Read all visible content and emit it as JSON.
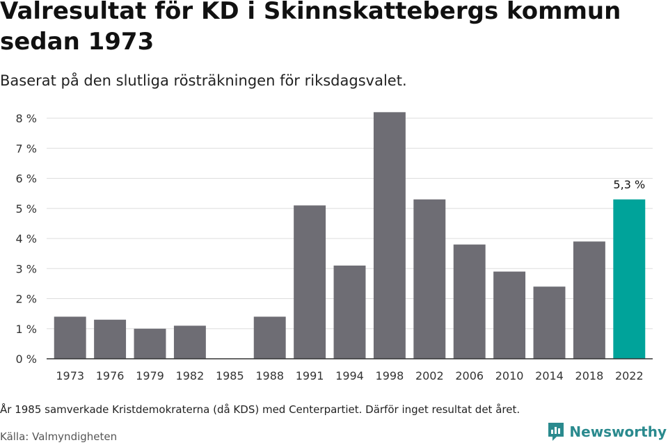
{
  "title": "Valresultat för KD i Skinnskattebergs kommun sedan 1973",
  "subtitle": "Baserat på den slutliga rösträkningen för riksdagsvalet.",
  "note": "År 1985 samverkade Kristdemokraterna (då KDS) med Centerpartiet. Därför inget resultat det året.",
  "source": "Källa: Valmyndigheten",
  "brand": {
    "name": "Newsworthy",
    "icon": "newsworthy-logo-icon"
  },
  "colors": {
    "bar": "#6e6d74",
    "highlight": "#00a39a",
    "grid": "#dddddd",
    "axis": "#333333"
  },
  "chart_data": {
    "type": "bar",
    "title": "Valresultat för KD i Skinnskattebergs kommun sedan 1973",
    "categories": [
      "1973",
      "1976",
      "1979",
      "1982",
      "1985",
      "1988",
      "1991",
      "1994",
      "1998",
      "2002",
      "2006",
      "2010",
      "2014",
      "2018",
      "2022"
    ],
    "values": [
      1.4,
      1.3,
      1.0,
      1.1,
      null,
      1.4,
      5.1,
      3.1,
      8.2,
      5.3,
      3.8,
      2.9,
      2.4,
      3.9,
      5.3
    ],
    "highlight_index": 14,
    "data_labels": [
      {
        "category": "2022",
        "text": "5,3 %"
      }
    ],
    "ylim": [
      0,
      8
    ],
    "yticks": [
      {
        "value": 0,
        "label": "0 %"
      },
      {
        "value": 1,
        "label": "1 %"
      },
      {
        "value": 2,
        "label": "2 %"
      },
      {
        "value": 3,
        "label": "3 %"
      },
      {
        "value": 4,
        "label": "4 %"
      },
      {
        "value": 5,
        "label": "5 %"
      },
      {
        "value": 6,
        "label": "6 %"
      },
      {
        "value": 7,
        "label": "7 %"
      },
      {
        "value": 8,
        "label": "8 %"
      }
    ],
    "xlabel": "",
    "ylabel": "",
    "grid": true
  }
}
